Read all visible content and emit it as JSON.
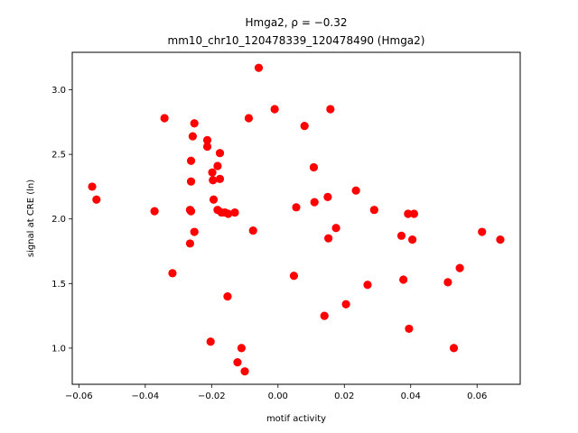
{
  "chart_data": {
    "type": "scatter",
    "title_line1": "Hmga2, ρ = −0.32",
    "title_line2": "mm10_chr10_120478339_120478490 (Hmga2)",
    "xlabel": "motif activity",
    "ylabel": "signal at CRE (ln)",
    "xlim": [
      -0.062,
      0.073
    ],
    "ylim": [
      0.72,
      3.29
    ],
    "xticks": [
      -0.06,
      -0.04,
      -0.02,
      0.0,
      0.02,
      0.04,
      0.06
    ],
    "xtick_labels": [
      "−0.06",
      "−0.04",
      "−0.02",
      "0.00",
      "0.02",
      "0.04",
      "0.06"
    ],
    "yticks": [
      1.0,
      1.5,
      2.0,
      2.5,
      3.0
    ],
    "ytick_labels": [
      "1.0",
      "1.5",
      "2.0",
      "2.5",
      "3.0"
    ],
    "grid": false,
    "point_color": "#ff0000",
    "points": [
      [
        -0.056,
        2.25
      ],
      [
        -0.0547,
        2.15
      ],
      [
        -0.0372,
        2.06
      ],
      [
        -0.0342,
        2.78
      ],
      [
        -0.0318,
        1.58
      ],
      [
        -0.0265,
        2.07
      ],
      [
        -0.0262,
        2.45
      ],
      [
        -0.0262,
        2.29
      ],
      [
        -0.0265,
        1.81
      ],
      [
        -0.0257,
        2.64
      ],
      [
        -0.0252,
        2.74
      ],
      [
        -0.0252,
        1.9
      ],
      [
        -0.0262,
        2.06
      ],
      [
        -0.0213,
        2.61
      ],
      [
        -0.0213,
        2.56
      ],
      [
        -0.0203,
        1.05
      ],
      [
        -0.0198,
        2.36
      ],
      [
        -0.0196,
        2.3
      ],
      [
        -0.0194,
        2.15
      ],
      [
        -0.0182,
        2.41
      ],
      [
        -0.0182,
        2.07
      ],
      [
        -0.0175,
        2.51
      ],
      [
        -0.0175,
        2.31
      ],
      [
        -0.017,
        2.05
      ],
      [
        -0.016,
        2.05
      ],
      [
        -0.0152,
        1.4
      ],
      [
        -0.015,
        2.04
      ],
      [
        -0.013,
        2.05
      ],
      [
        -0.0122,
        0.89
      ],
      [
        -0.011,
        1.0
      ],
      [
        -0.01,
        0.82
      ],
      [
        -0.0088,
        2.78
      ],
      [
        -0.0075,
        1.91
      ],
      [
        -0.0058,
        3.17
      ],
      [
        -0.001,
        2.85
      ],
      [
        0.0048,
        1.56
      ],
      [
        0.0055,
        2.09
      ],
      [
        0.008,
        2.72
      ],
      [
        0.0108,
        2.4
      ],
      [
        0.011,
        2.13
      ],
      [
        0.014,
        1.25
      ],
      [
        0.015,
        2.17
      ],
      [
        0.0152,
        1.85
      ],
      [
        0.0158,
        2.85
      ],
      [
        0.0175,
        1.93
      ],
      [
        0.0205,
        1.34
      ],
      [
        0.0235,
        2.22
      ],
      [
        0.027,
        1.49
      ],
      [
        0.029,
        2.07
      ],
      [
        0.0372,
        1.87
      ],
      [
        0.0378,
        1.53
      ],
      [
        0.0392,
        2.04
      ],
      [
        0.0395,
        1.15
      ],
      [
        0.0405,
        1.84
      ],
      [
        0.041,
        2.04
      ],
      [
        0.0512,
        1.51
      ],
      [
        0.053,
        1.0
      ],
      [
        0.0548,
        1.62
      ],
      [
        0.0615,
        1.9
      ],
      [
        0.067,
        1.84
      ]
    ]
  }
}
